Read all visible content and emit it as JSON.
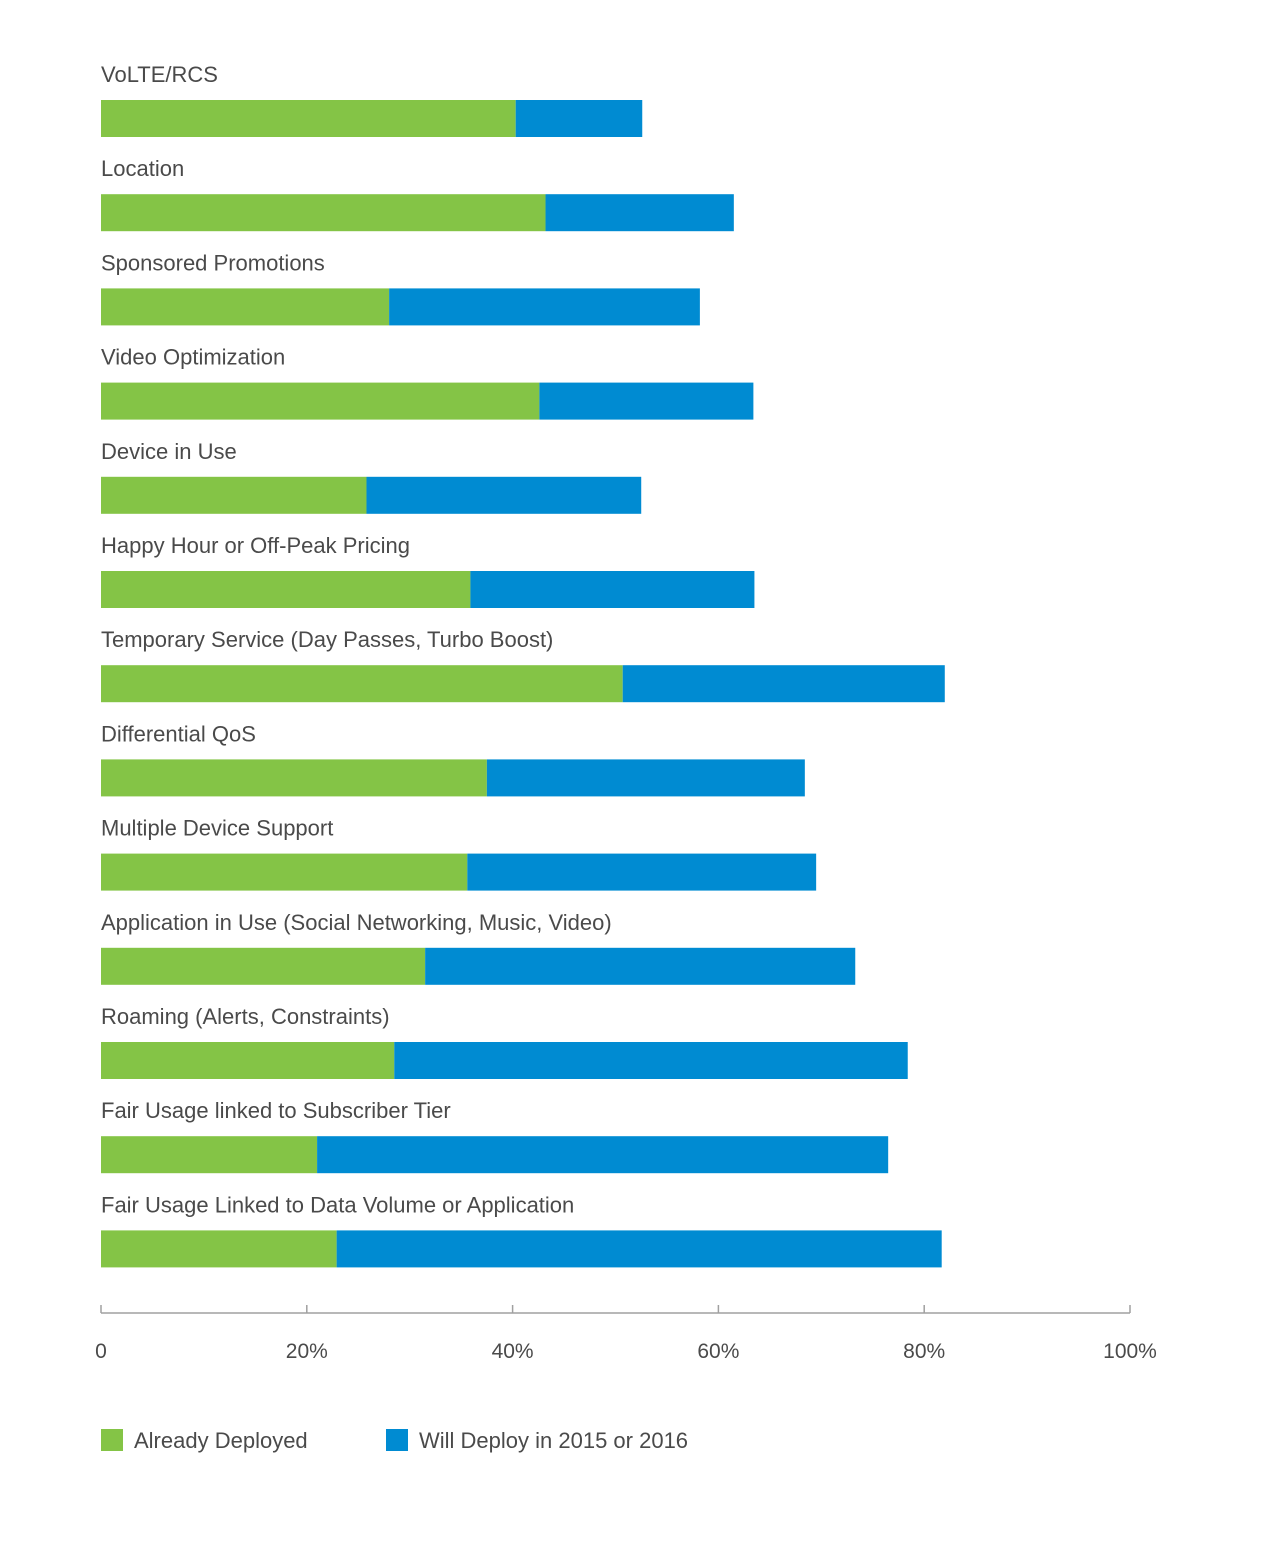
{
  "chart_data": {
    "type": "bar",
    "orientation": "horizontal",
    "stacked": true,
    "categories": [
      "VoLTE/RCS",
      "Location",
      "Sponsored Promotions",
      "Video Optimization",
      "Device in Use",
      "Happy Hour or Off-Peak Pricing",
      "Temporary Service (Day Passes, Turbo Boost)",
      "Differential QoS",
      "Multiple Device Support",
      "Application in Use (Social Networking, Music, Video)",
      "Roaming (Alerts, Constraints)",
      "Fair Usage linked to Subscriber Tier",
      "Fair Usage Linked to Data Volume or Application"
    ],
    "series": [
      {
        "name": "Already Deployed",
        "color": "#84c446",
        "values": [
          40.3,
          43.2,
          28.0,
          42.6,
          25.8,
          35.9,
          50.7,
          37.5,
          35.6,
          31.5,
          28.5,
          21.0,
          22.9
        ]
      },
      {
        "name": "Will Deploy in 2015 or 2016",
        "color": "#008bd2",
        "values": [
          12.3,
          18.3,
          30.2,
          20.8,
          26.7,
          27.6,
          31.3,
          30.9,
          33.9,
          41.8,
          49.9,
          55.5,
          58.8
        ]
      }
    ],
    "xlim": [
      0,
      100
    ],
    "x_ticks": [
      "0",
      "20%",
      "40%",
      "60%",
      "80%",
      "100%"
    ],
    "grid": false,
    "legend_position": "bottom-left",
    "axis_color": "#a0a0a0"
  }
}
